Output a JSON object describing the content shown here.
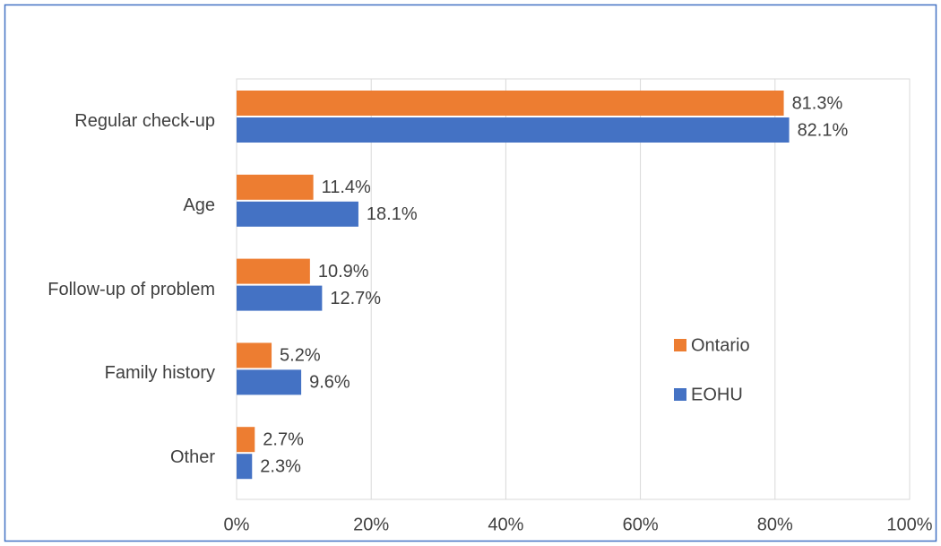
{
  "chart_data": {
    "type": "hbar",
    "categories": [
      "Regular check-up",
      "Age",
      "Follow-up of problem",
      "Family history",
      "Other"
    ],
    "series": [
      {
        "name": "Ontario",
        "color": "#ed7d31",
        "values": [
          81.3,
          11.4,
          10.9,
          5.2,
          2.7
        ],
        "value_labels": [
          "81.3%",
          "11.4%",
          "10.9%",
          "5.2%",
          "2.7%"
        ]
      },
      {
        "name": "EOHU",
        "color": "#4472c4",
        "values": [
          82.1,
          18.1,
          12.7,
          9.6,
          2.3
        ],
        "value_labels": [
          "82.1%",
          "18.1%",
          "12.7%",
          "9.6%",
          "2.3%"
        ]
      }
    ],
    "xlim": [
      0,
      100
    ],
    "xticks": [
      {
        "value": 0,
        "label": "0%"
      },
      {
        "value": 20,
        "label": "20%"
      },
      {
        "value": 40,
        "label": "40%"
      },
      {
        "value": 60,
        "label": "60%"
      },
      {
        "value": 80,
        "label": "80%"
      },
      {
        "value": 100,
        "label": "100%"
      }
    ],
    "grid": true,
    "legend": "right"
  }
}
